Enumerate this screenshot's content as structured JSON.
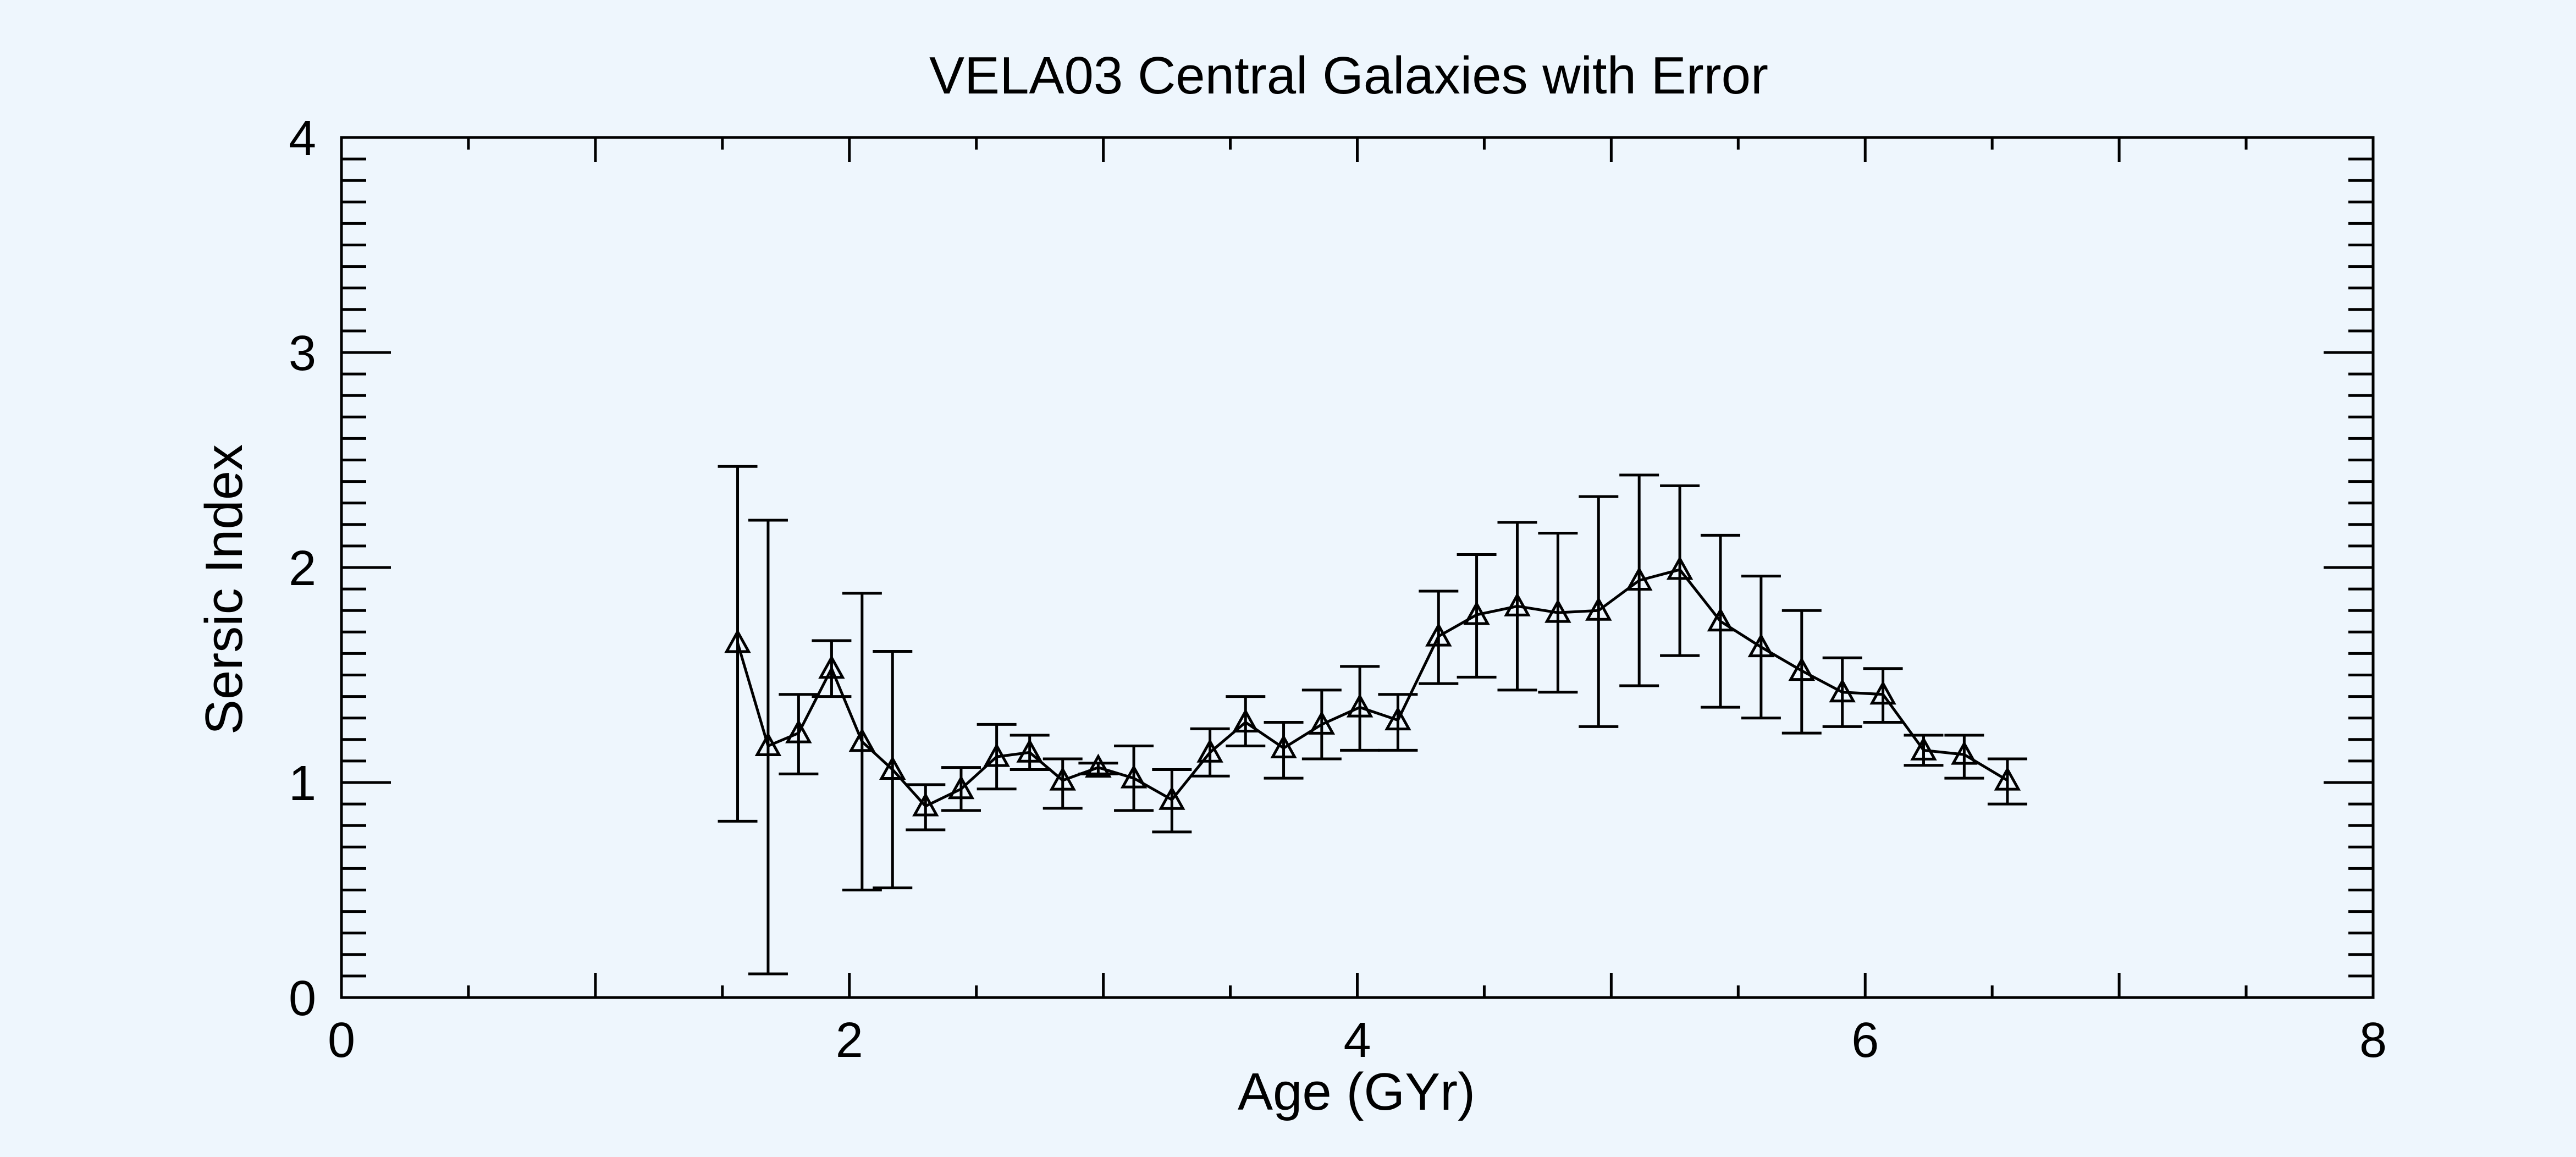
{
  "colors": {
    "background": "#eef6fd",
    "ink": "#000000"
  },
  "chart_data": {
    "type": "scatter",
    "title": "VELA03 Central Galaxies with Error",
    "xlabel": "Age (GYr)",
    "ylabel": "Sersic Index",
    "xlim": [
      0,
      8
    ],
    "ylim": [
      0,
      4
    ],
    "xticks": [
      "0",
      "2",
      "4",
      "6",
      "8"
    ],
    "yticks": [
      "0",
      "1",
      "2",
      "3",
      "4"
    ],
    "grid": false,
    "marker": "triangle-open",
    "line": "solid",
    "series": [
      {
        "points": [
          {
            "x": 1.56,
            "y": 1.65,
            "lo": 0.82,
            "hi": 2.47
          },
          {
            "x": 1.68,
            "y": 1.17,
            "lo": 0.11,
            "hi": 2.22
          },
          {
            "x": 1.8,
            "y": 1.23,
            "lo": 1.04,
            "hi": 1.41
          },
          {
            "x": 1.93,
            "y": 1.53,
            "lo": 1.4,
            "hi": 1.66
          },
          {
            "x": 2.05,
            "y": 1.19,
            "lo": 0.5,
            "hi": 1.88
          },
          {
            "x": 2.17,
            "y": 1.06,
            "lo": 0.51,
            "hi": 1.61
          },
          {
            "x": 2.3,
            "y": 0.89,
            "lo": 0.78,
            "hi": 0.99
          },
          {
            "x": 2.44,
            "y": 0.97,
            "lo": 0.87,
            "hi": 1.07
          },
          {
            "x": 2.58,
            "y": 1.12,
            "lo": 0.97,
            "hi": 1.27
          },
          {
            "x": 2.71,
            "y": 1.14,
            "lo": 1.06,
            "hi": 1.22
          },
          {
            "x": 2.84,
            "y": 1.01,
            "lo": 0.88,
            "hi": 1.11
          },
          {
            "x": 2.98,
            "y": 1.07,
            "lo": 1.04,
            "hi": 1.09
          },
          {
            "x": 3.12,
            "y": 1.02,
            "lo": 0.87,
            "hi": 1.17
          },
          {
            "x": 3.27,
            "y": 0.92,
            "lo": 0.77,
            "hi": 1.06
          },
          {
            "x": 3.42,
            "y": 1.14,
            "lo": 1.03,
            "hi": 1.25
          },
          {
            "x": 3.56,
            "y": 1.28,
            "lo": 1.17,
            "hi": 1.4
          },
          {
            "x": 3.71,
            "y": 1.16,
            "lo": 1.02,
            "hi": 1.28
          },
          {
            "x": 3.86,
            "y": 1.27,
            "lo": 1.11,
            "hi": 1.43
          },
          {
            "x": 4.01,
            "y": 1.35,
            "lo": 1.15,
            "hi": 1.54
          },
          {
            "x": 4.16,
            "y": 1.29,
            "lo": 1.15,
            "hi": 1.41
          },
          {
            "x": 4.32,
            "y": 1.68,
            "lo": 1.46,
            "hi": 1.89
          },
          {
            "x": 4.47,
            "y": 1.78,
            "lo": 1.49,
            "hi": 2.06
          },
          {
            "x": 4.63,
            "y": 1.82,
            "lo": 1.43,
            "hi": 2.21
          },
          {
            "x": 4.79,
            "y": 1.79,
            "lo": 1.42,
            "hi": 2.16
          },
          {
            "x": 4.95,
            "y": 1.8,
            "lo": 1.26,
            "hi": 2.33
          },
          {
            "x": 5.11,
            "y": 1.94,
            "lo": 1.45,
            "hi": 2.43
          },
          {
            "x": 5.27,
            "y": 1.99,
            "lo": 1.59,
            "hi": 2.38
          },
          {
            "x": 5.43,
            "y": 1.75,
            "lo": 1.35,
            "hi": 2.15
          },
          {
            "x": 5.59,
            "y": 1.63,
            "lo": 1.3,
            "hi": 1.96
          },
          {
            "x": 5.75,
            "y": 1.52,
            "lo": 1.23,
            "hi": 1.8
          },
          {
            "x": 5.91,
            "y": 1.42,
            "lo": 1.26,
            "hi": 1.58
          },
          {
            "x": 6.07,
            "y": 1.41,
            "lo": 1.28,
            "hi": 1.53
          },
          {
            "x": 6.23,
            "y": 1.15,
            "lo": 1.08,
            "hi": 1.22
          },
          {
            "x": 6.39,
            "y": 1.13,
            "lo": 1.02,
            "hi": 1.22
          },
          {
            "x": 6.56,
            "y": 1.01,
            "lo": 0.9,
            "hi": 1.11
          }
        ]
      }
    ]
  }
}
